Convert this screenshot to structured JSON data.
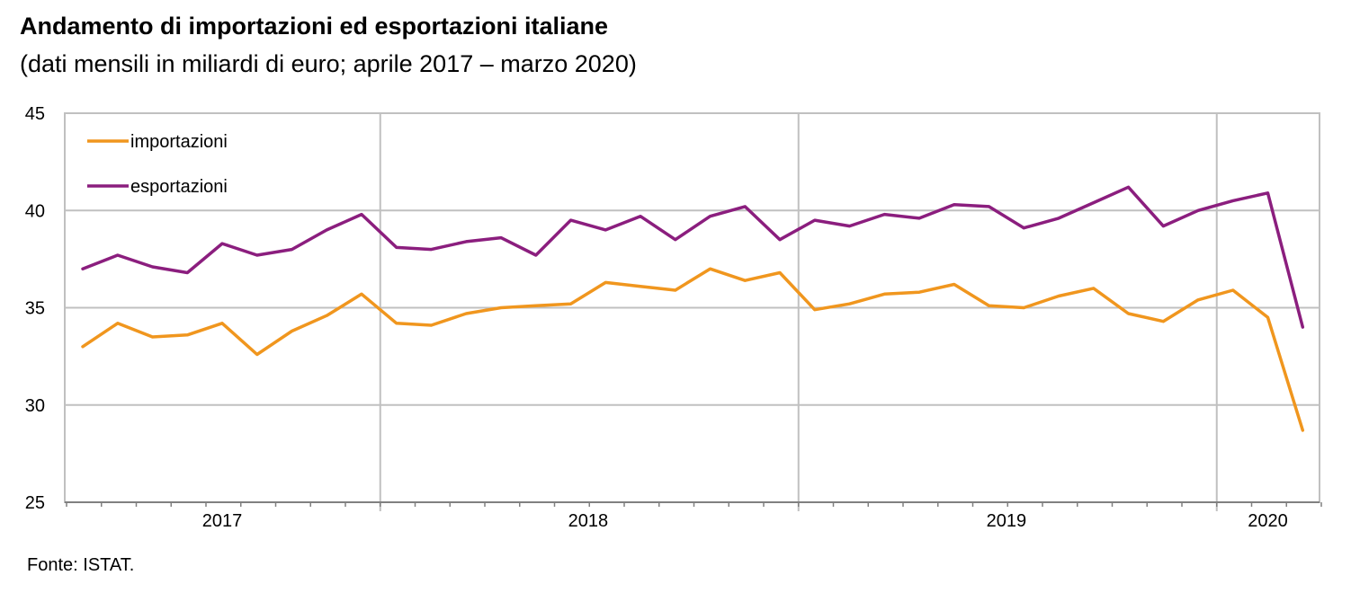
{
  "title": "Andamento di importazioni ed esportazioni italiane",
  "subtitle": "(dati mensili in miliardi di euro; aprile 2017 – marzo 2020)",
  "source": "Fonte: ISTAT.",
  "chart_data": {
    "type": "line",
    "title": "Andamento di importazioni ed esportazioni italiane",
    "subtitle": "(dati mensili in miliardi di euro; aprile 2017 – marzo 2020)",
    "xlabel": "",
    "ylabel": "",
    "ylim": [
      25,
      45
    ],
    "yticks": [
      25,
      30,
      35,
      40,
      45
    ],
    "year_labels": [
      "2017",
      "2018",
      "2019",
      "2020"
    ],
    "grid": true,
    "legend_position": "top-left",
    "x": [
      "2017-04",
      "2017-05",
      "2017-06",
      "2017-07",
      "2017-08",
      "2017-09",
      "2017-10",
      "2017-11",
      "2017-12",
      "2018-01",
      "2018-02",
      "2018-03",
      "2018-04",
      "2018-05",
      "2018-06",
      "2018-07",
      "2018-08",
      "2018-09",
      "2018-10",
      "2018-11",
      "2018-12",
      "2019-01",
      "2019-02",
      "2019-03",
      "2019-04",
      "2019-05",
      "2019-06",
      "2019-07",
      "2019-08",
      "2019-09",
      "2019-10",
      "2019-11",
      "2019-12",
      "2020-01",
      "2020-02",
      "2020-03"
    ],
    "series": [
      {
        "name": "importazioni",
        "color": "#F0961E",
        "values": [
          33.0,
          34.2,
          33.5,
          33.6,
          34.2,
          32.6,
          33.8,
          34.6,
          35.7,
          34.2,
          34.1,
          34.7,
          35.0,
          35.1,
          35.2,
          36.3,
          36.1,
          35.9,
          37.0,
          36.4,
          36.8,
          34.9,
          35.2,
          35.7,
          35.8,
          36.2,
          35.1,
          35.0,
          35.6,
          36.0,
          34.7,
          34.3,
          35.4,
          35.9,
          34.5,
          28.7
        ]
      },
      {
        "name": "esportazioni",
        "color": "#8B1E7E",
        "values": [
          37.0,
          37.7,
          37.1,
          36.8,
          38.3,
          37.7,
          38.0,
          39.0,
          39.8,
          38.1,
          38.0,
          38.4,
          38.6,
          37.7,
          39.5,
          39.0,
          39.7,
          38.5,
          39.7,
          40.2,
          38.5,
          39.5,
          39.2,
          39.8,
          39.6,
          40.3,
          40.2,
          39.1,
          39.6,
          40.4,
          41.2,
          39.2,
          40.0,
          40.5,
          40.9,
          34.0
        ]
      }
    ]
  }
}
